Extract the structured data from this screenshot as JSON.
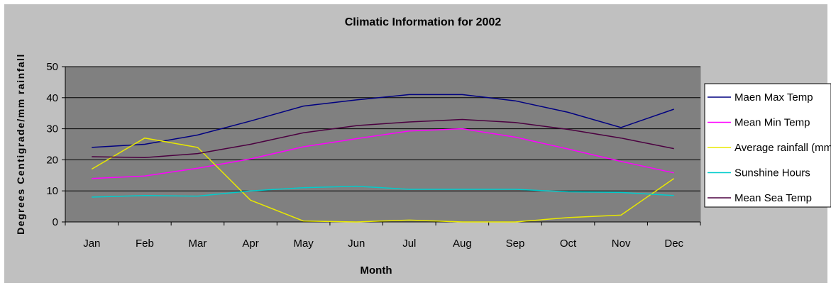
{
  "chart_data": {
    "type": "line",
    "title": "Climatic Information for 2002",
    "xlabel": "Month",
    "ylabel": "Degrees Centigrade/mm rainfall",
    "categories": [
      "Jan",
      "Feb",
      "Mar",
      "Apr",
      "May",
      "Jun",
      "Jul",
      "Aug",
      "Sep",
      "Oct",
      "Nov",
      "Dec"
    ],
    "ylim": [
      0,
      50
    ],
    "yticks": [
      0,
      10,
      20,
      30,
      40,
      50
    ],
    "grid": true,
    "legend_position": "right",
    "series": [
      {
        "name": "Maen Max Temp",
        "color": "#000080",
        "values": [
          24,
          25,
          28,
          32.5,
          37.3,
          39.3,
          41,
          41,
          39,
          35.3,
          30.4,
          36.3
        ]
      },
      {
        "name": "Mean Min Temp",
        "color": "#ff00ff",
        "values": [
          14,
          14.8,
          17.3,
          20.3,
          24.2,
          26.8,
          29.3,
          30,
          27.3,
          23.5,
          19.5,
          15.8
        ]
      },
      {
        "name": "Average rainfall (mm)",
        "color": "#e8e800",
        "values": [
          17,
          27,
          24,
          7,
          0.3,
          0,
          0.6,
          0,
          0,
          1.4,
          2.2,
          14
        ]
      },
      {
        "name": "Sunshine Hours",
        "color": "#00cccc",
        "values": [
          8,
          8.5,
          8.3,
          10,
          11,
          11.5,
          10.5,
          10.5,
          10.5,
          9.7,
          9.5,
          8.5
        ]
      },
      {
        "name": "Mean Sea Temp",
        "color": "#4b0040",
        "values": [
          21,
          20.7,
          22,
          25,
          28.7,
          31,
          32.2,
          33,
          32,
          29.8,
          27,
          23.6
        ]
      }
    ]
  }
}
